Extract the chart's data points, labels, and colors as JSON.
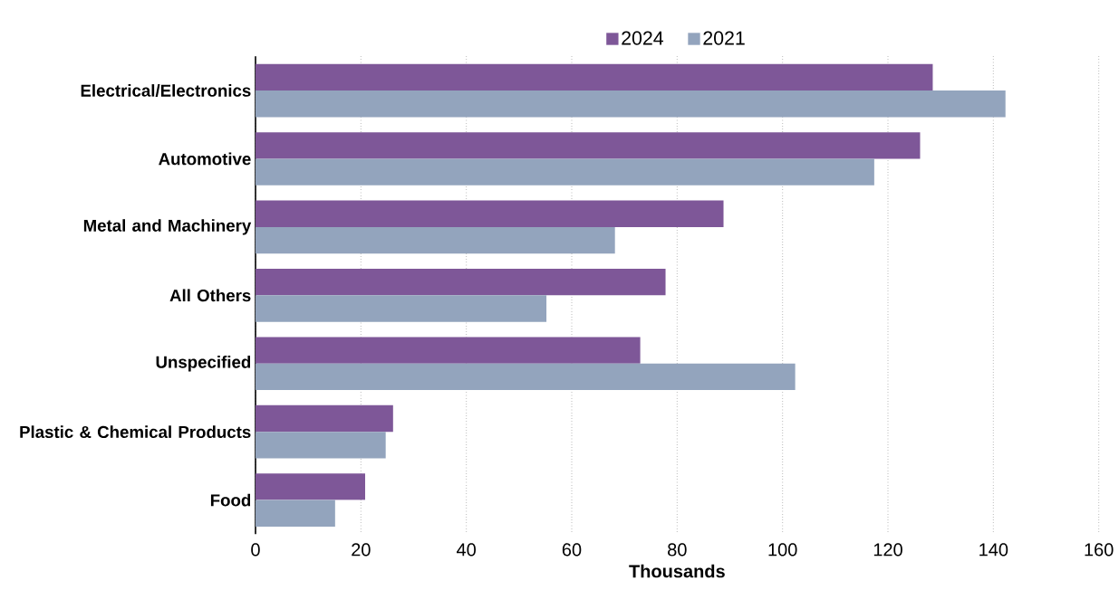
{
  "chart_data": {
    "type": "bar",
    "orientation": "horizontal",
    "xlabel": "Thousands",
    "categories": [
      "Electrical/Electronics",
      "Automotive",
      "Metal and Machinery",
      "All Others",
      "Unspecified",
      "Plastic & Chemical Products",
      "Food"
    ],
    "series": [
      {
        "name": "2024",
        "color": "#7e5798",
        "values": [
          128.5,
          126.1,
          88.8,
          77.8,
          73.0,
          26.1,
          20.8
        ]
      },
      {
        "name": "2021",
        "color": "#93a4bd",
        "values": [
          142.3,
          117.4,
          68.2,
          55.2,
          102.4,
          24.7,
          15.1
        ]
      }
    ],
    "xlim": [
      0,
      160
    ],
    "xticks": [
      0,
      20,
      40,
      60,
      80,
      100,
      120,
      140,
      160
    ],
    "grid": "x",
    "legend": "top"
  }
}
